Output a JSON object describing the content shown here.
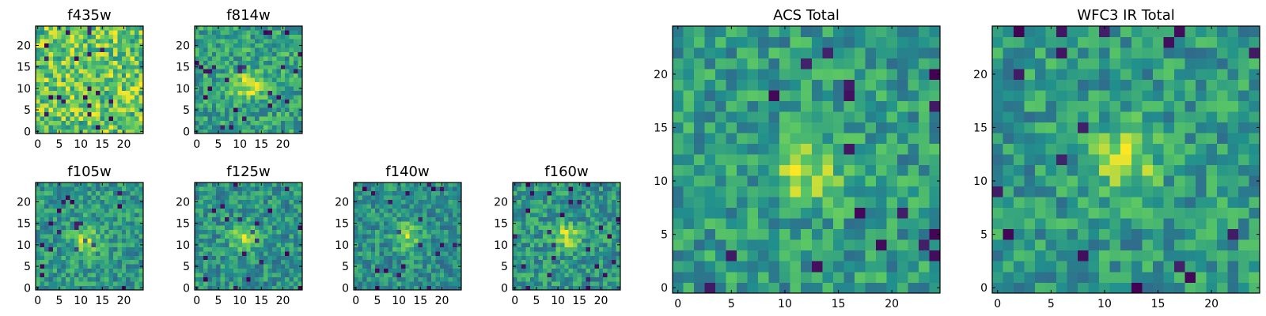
{
  "colormap": "viridis",
  "colormap_stops": [
    "#440154",
    "#3b528b",
    "#21908d",
    "#5dc963",
    "#fde725"
  ],
  "chart_data": [
    {
      "type": "heatmap",
      "title": "f435w",
      "grid": [
        25,
        25
      ],
      "xlim": [
        0,
        24
      ],
      "ylim": [
        0,
        24
      ],
      "xticks": [
        0,
        5,
        10,
        15,
        20
      ],
      "yticks": [
        0,
        5,
        10,
        15,
        20
      ],
      "peak": null,
      "noise_seed": 11
    },
    {
      "type": "heatmap",
      "title": "f814w",
      "grid": [
        25,
        25
      ],
      "xlim": [
        0,
        24
      ],
      "ylim": [
        0,
        24
      ],
      "xticks": [
        0,
        5,
        10,
        15,
        20
      ],
      "yticks": [
        0,
        5,
        10,
        15,
        20
      ],
      "peak": [
        12,
        11
      ],
      "noise_seed": 23
    },
    {
      "type": "heatmap",
      "title": "f105w",
      "grid": [
        25,
        25
      ],
      "xlim": [
        0,
        24
      ],
      "ylim": [
        0,
        24
      ],
      "xticks": [
        0,
        5,
        10,
        15,
        20
      ],
      "yticks": [
        0,
        5,
        10,
        15,
        20
      ],
      "peak": [
        11,
        11
      ],
      "noise_seed": 37
    },
    {
      "type": "heatmap",
      "title": "f125w",
      "grid": [
        25,
        25
      ],
      "xlim": [
        0,
        24
      ],
      "ylim": [
        0,
        24
      ],
      "xticks": [
        0,
        5,
        10,
        15,
        20
      ],
      "yticks": [
        0,
        5,
        10,
        15,
        20
      ],
      "peak": [
        11,
        12
      ],
      "noise_seed": 41
    },
    {
      "type": "heatmap",
      "title": "f140w",
      "grid": [
        25,
        25
      ],
      "xlim": [
        0,
        24
      ],
      "ylim": [
        0,
        24
      ],
      "xticks": [
        0,
        5,
        10,
        15,
        20
      ],
      "yticks": [
        0,
        5,
        10,
        15,
        20
      ],
      "peak": [
        12,
        12
      ],
      "noise_seed": 53
    },
    {
      "type": "heatmap",
      "title": "f160w",
      "grid": [
        25,
        25
      ],
      "xlim": [
        0,
        24
      ],
      "ylim": [
        0,
        24
      ],
      "xticks": [
        0,
        5,
        10,
        15,
        20
      ],
      "yticks": [
        0,
        5,
        10,
        15,
        20
      ],
      "peak": [
        12,
        12
      ],
      "noise_seed": 67
    },
    {
      "type": "heatmap",
      "title": "ACS Total",
      "grid": [
        25,
        25
      ],
      "xlim": [
        0,
        24
      ],
      "ylim": [
        0,
        24
      ],
      "xticks": [
        0,
        5,
        10,
        15,
        20
      ],
      "yticks": [
        0,
        5,
        10,
        15,
        20
      ],
      "peak": [
        12,
        11
      ],
      "noise_seed": 79
    },
    {
      "type": "heatmap",
      "title": "WFC3 IR Total",
      "grid": [
        25,
        25
      ],
      "xlim": [
        0,
        24
      ],
      "ylim": [
        0,
        24
      ],
      "xticks": [
        0,
        5,
        10,
        15,
        20
      ],
      "yticks": [
        0,
        5,
        10,
        15,
        20
      ],
      "peak": [
        12,
        12
      ],
      "noise_seed": 97
    }
  ]
}
